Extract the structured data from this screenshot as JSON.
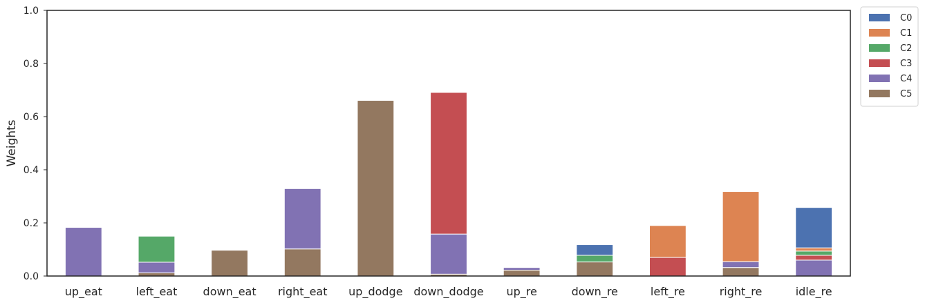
{
  "chart_data": {
    "type": "bar",
    "stacked": true,
    "ylabel": "Weights",
    "xlabel": "",
    "ylim": [
      0,
      1.0
    ],
    "yticks": [
      "0.0",
      "0.2",
      "0.4",
      "0.6",
      "0.8",
      "1.0"
    ],
    "grid": false,
    "legend_position": "outside-top-right",
    "categories": [
      "up_eat",
      "left_eat",
      "down_eat",
      "right_eat",
      "up_dodge",
      "down_dodge",
      "up_re",
      "down_re",
      "left_re",
      "right_re",
      "idle_re"
    ],
    "series": [
      {
        "name": "C5",
        "color": "#937860",
        "values": [
          0.0,
          0.012,
          0.097,
          0.102,
          0.661,
          0.007,
          0.022,
          0.053,
          0.0,
          0.032,
          0.0
        ]
      },
      {
        "name": "C4",
        "color": "#8172b3",
        "values": [
          0.183,
          0.04,
          0.0,
          0.227,
          0.0,
          0.151,
          0.01,
          0.0,
          0.0,
          0.022,
          0.06
        ]
      },
      {
        "name": "C3",
        "color": "#c44e52",
        "values": [
          0.0,
          0.0,
          0.0,
          0.0,
          0.0,
          0.533,
          0.0,
          0.0,
          0.07,
          0.0,
          0.018
        ]
      },
      {
        "name": "C2",
        "color": "#55a868",
        "values": [
          0.0,
          0.098,
          0.0,
          0.0,
          0.0,
          0.0,
          0.0,
          0.025,
          0.0,
          0.0,
          0.016
        ]
      },
      {
        "name": "C1",
        "color": "#dd8452",
        "values": [
          0.0,
          0.0,
          0.0,
          0.0,
          0.0,
          0.0,
          0.0,
          0.0,
          0.12,
          0.264,
          0.012
        ]
      },
      {
        "name": "C0",
        "color": "#4c72b0",
        "values": [
          0.0,
          0.0,
          0.0,
          0.0,
          0.0,
          0.0,
          0.0,
          0.04,
          0.0,
          0.0,
          0.152
        ]
      }
    ],
    "legend_order": [
      "C0",
      "C1",
      "C2",
      "C3",
      "C4",
      "C5"
    ]
  }
}
